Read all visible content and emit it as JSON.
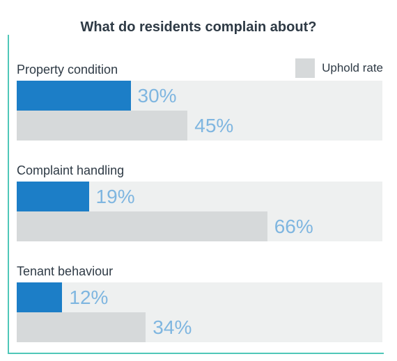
{
  "chart_data": {
    "type": "bar",
    "orientation": "horizontal",
    "title": "What do residents complain about?",
    "categories": [
      "Property condition",
      "Complaint handling",
      "Tenant behaviour"
    ],
    "series": [
      {
        "name": "",
        "values": [
          30,
          19,
          12
        ],
        "labels": [
          "30%",
          "19%",
          "12%"
        ],
        "color": "#1c7ec7"
      },
      {
        "name": "Uphold rate",
        "values": [
          45,
          66,
          34
        ],
        "labels": [
          "45%",
          "66%",
          "34%"
        ],
        "color": "#d6d9da"
      }
    ],
    "xlim": [
      0,
      100
    ],
    "unit": "%",
    "legend": "top-right",
    "grid": false
  }
}
